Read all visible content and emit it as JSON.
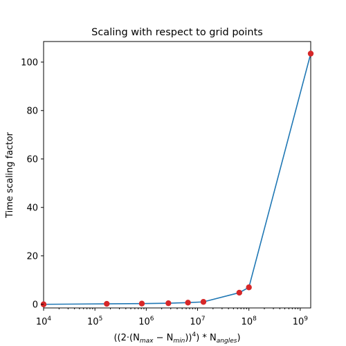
{
  "chart_data": {
    "type": "line",
    "title": "Scaling with respect to grid points",
    "ylabel": "Time scaling factor",
    "xlabel": {
      "open": "((2·(N",
      "sub1": "max",
      "mid": " − N",
      "sub2": "min",
      "close1": "))",
      "sup": "4",
      "close2": ") * N",
      "sub3": "angles",
      "close3": ")"
    },
    "xscale": "log",
    "xlim": [
      10000,
      1600000000
    ],
    "ylim": [
      -1.5,
      108.5
    ],
    "x_ticks": [
      {
        "value": 10000,
        "base": "10",
        "exp": "4"
      },
      {
        "value": 100000,
        "base": "10",
        "exp": "5"
      },
      {
        "value": 1000000,
        "base": "10",
        "exp": "6"
      },
      {
        "value": 10000000,
        "base": "10",
        "exp": "7"
      },
      {
        "value": 100000000,
        "base": "10",
        "exp": "8"
      },
      {
        "value": 1000000000,
        "base": "10",
        "exp": "9"
      }
    ],
    "y_ticks": [
      {
        "value": 0,
        "label": "0"
      },
      {
        "value": 20,
        "label": "20"
      },
      {
        "value": 40,
        "label": "40"
      },
      {
        "value": 60,
        "label": "60"
      },
      {
        "value": 80,
        "label": "80"
      },
      {
        "value": 100,
        "label": "100"
      }
    ],
    "grid": false,
    "series": [
      {
        "line_color": "#1f77b4",
        "marker_color": "#d62728",
        "x": [
          10000,
          170000,
          820000,
          2700000,
          6500000,
          13000000,
          65000000,
          100000000,
          1600000000
        ],
        "y": [
          0.0,
          0.2,
          0.3,
          0.45,
          0.7,
          1.0,
          4.8,
          7.0,
          103.5
        ]
      }
    ]
  }
}
